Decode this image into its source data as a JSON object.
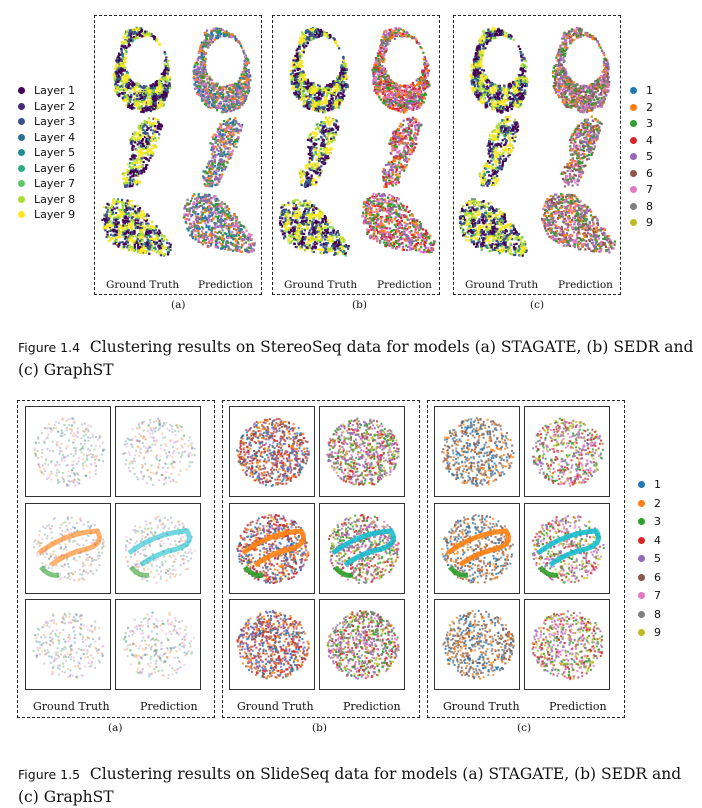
{
  "figure_1_4": {
    "legend_layers": [
      {
        "label": "Layer 1",
        "color": "#440154"
      },
      {
        "label": "Layer 2",
        "color": "#472c7a"
      },
      {
        "label": "Layer 3",
        "color": "#3b518b"
      },
      {
        "label": "Layer 4",
        "color": "#2c718e"
      },
      {
        "label": "Layer 5",
        "color": "#21908d"
      },
      {
        "label": "Layer 6",
        "color": "#27ad81"
      },
      {
        "label": "Layer 7",
        "color": "#5cc863"
      },
      {
        "label": "Layer 8",
        "color": "#aadc32"
      },
      {
        "label": "Layer 9",
        "color": "#fde725"
      }
    ],
    "panels": [
      {
        "id": "(a)",
        "gt": "Ground Truth",
        "pred": "Prediction"
      },
      {
        "id": "(b)",
        "gt": "Ground Truth",
        "pred": "Prediction"
      },
      {
        "id": "(c)",
        "gt": "Ground Truth",
        "pred": "Prediction"
      }
    ],
    "caption_fig": "Figure 1.4",
    "caption_text": "Clustering results on StereoSeq data for models (a) STAGATE, (b) SEDR and (c) GraphST"
  },
  "cluster_legend": [
    {
      "label": "1",
      "color": "#1f77b4"
    },
    {
      "label": "2",
      "color": "#ff7f0e"
    },
    {
      "label": "3",
      "color": "#2ca02c"
    },
    {
      "label": "4",
      "color": "#d62728"
    },
    {
      "label": "5",
      "color": "#9467bd"
    },
    {
      "label": "6",
      "color": "#8c564b"
    },
    {
      "label": "7",
      "color": "#e377c2"
    },
    {
      "label": "8",
      "color": "#7f7f7f"
    },
    {
      "label": "9",
      "color": "#bcbd22"
    }
  ],
  "figure_1_5": {
    "panels": [
      {
        "id": "(a)",
        "gt": "Ground Truth",
        "pred": "Prediction"
      },
      {
        "id": "(b)",
        "gt": "Ground Truth",
        "pred": "Prediction"
      },
      {
        "id": "(c)",
        "gt": "Ground Truth",
        "pred": "Prediction"
      }
    ],
    "caption_fig": "Figure 1.5",
    "caption_text": "Clustering results on SlideSeq data for models (a) STAGATE, (b) SEDR and (c) GraphST"
  }
}
